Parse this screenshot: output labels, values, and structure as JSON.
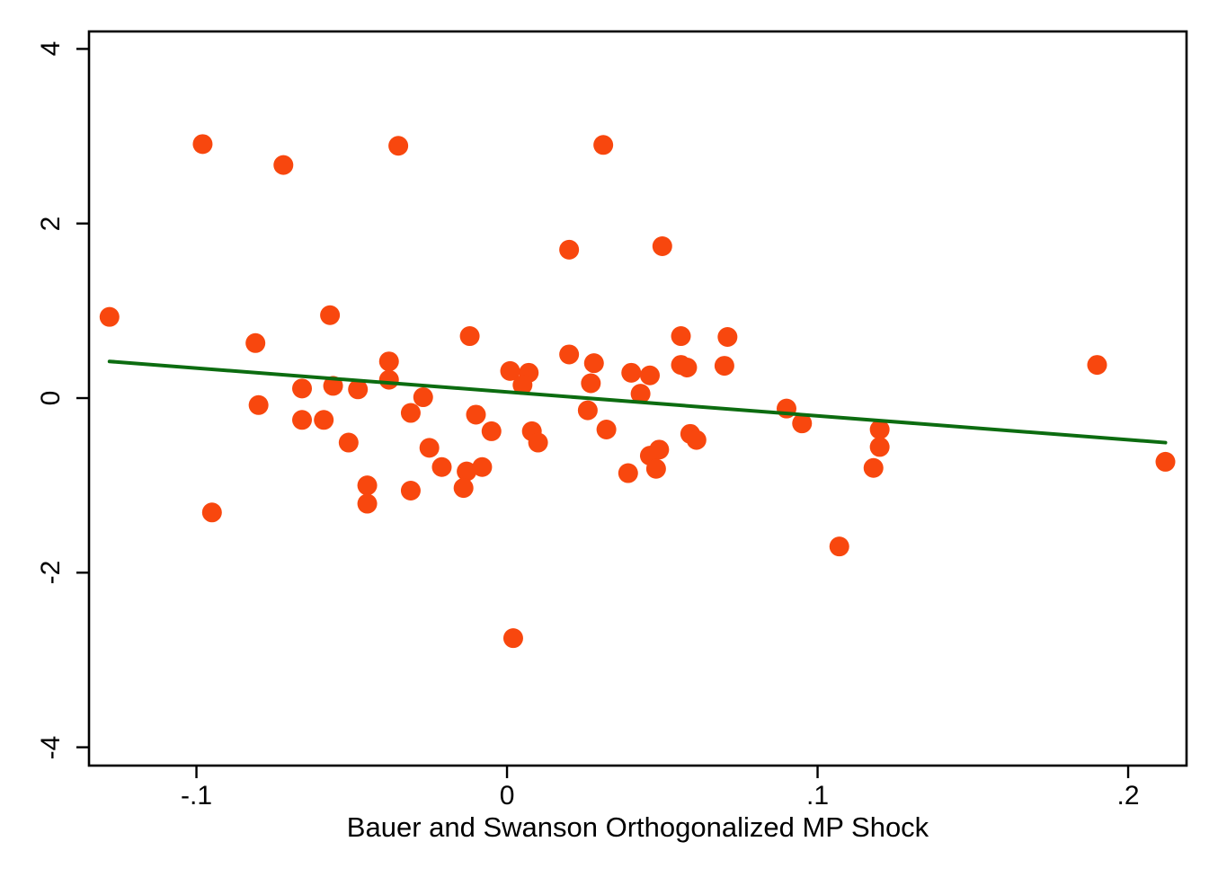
{
  "figure": {
    "background": "#FFFFFF"
  },
  "chart_data": {
    "type": "scatter",
    "title": "",
    "xlabel": "Bauer and Swanson Orthogonalized MP Shock",
    "ylabel": "",
    "grid": false,
    "legend": null,
    "frame_color": "#000000",
    "tick_color": "#000000",
    "xlim": [
      -0.1346,
      0.2188
    ],
    "ylim": [
      -4.21,
      4.2
    ],
    "x_ticks": [
      {
        "value": -0.1,
        "label": "-.1"
      },
      {
        "value": 0.0,
        "label": "0"
      },
      {
        "value": 0.1,
        "label": ".1"
      },
      {
        "value": 0.2,
        "label": ".2"
      }
    ],
    "y_ticks": [
      {
        "value": 4,
        "label": "4"
      },
      {
        "value": 2,
        "label": "2"
      },
      {
        "value": 0,
        "label": "0"
      },
      {
        "value": -2,
        "label": "-2"
      },
      {
        "value": -4,
        "label": "-4"
      }
    ],
    "series": [
      {
        "name": "scatter-points",
        "type": "scatter",
        "color": "#F8470E",
        "marker_diameter_px": 22,
        "points": [
          [
            -0.128,
            0.93
          ],
          [
            -0.098,
            2.91
          ],
          [
            -0.072,
            2.67
          ],
          [
            -0.035,
            2.89
          ],
          [
            0.031,
            2.9
          ],
          [
            0.02,
            1.7
          ],
          [
            0.05,
            1.74
          ],
          [
            -0.057,
            0.95
          ],
          [
            -0.081,
            0.63
          ],
          [
            -0.012,
            0.71
          ],
          [
            0.056,
            0.71
          ],
          [
            0.071,
            0.7
          ],
          [
            -0.038,
            0.42
          ],
          [
            -0.038,
            0.21
          ],
          [
            -0.066,
            0.11
          ],
          [
            -0.056,
            0.14
          ],
          [
            -0.048,
            0.1
          ],
          [
            -0.027,
            0.01
          ],
          [
            0.001,
            0.31
          ],
          [
            0.007,
            0.29
          ],
          [
            0.005,
            0.15
          ],
          [
            0.02,
            0.5
          ],
          [
            0.028,
            0.4
          ],
          [
            0.027,
            0.17
          ],
          [
            0.04,
            0.29
          ],
          [
            0.046,
            0.26
          ],
          [
            0.043,
            0.05
          ],
          [
            0.056,
            0.38
          ],
          [
            0.058,
            0.35
          ],
          [
            0.07,
            0.37
          ],
          [
            0.19,
            0.38
          ],
          [
            -0.08,
            -0.08
          ],
          [
            -0.066,
            -0.25
          ],
          [
            -0.059,
            -0.25
          ],
          [
            -0.051,
            -0.51
          ],
          [
            -0.031,
            -0.17
          ],
          [
            -0.025,
            -0.57
          ],
          [
            -0.021,
            -0.79
          ],
          [
            -0.013,
            -0.84
          ],
          [
            -0.008,
            -0.79
          ],
          [
            -0.014,
            -1.03
          ],
          [
            -0.01,
            -0.19
          ],
          [
            -0.005,
            -0.38
          ],
          [
            -0.045,
            -1.0
          ],
          [
            -0.045,
            -1.21
          ],
          [
            -0.031,
            -1.06
          ],
          [
            0.008,
            -0.38
          ],
          [
            0.01,
            -0.51
          ],
          [
            0.026,
            -0.14
          ],
          [
            0.032,
            -0.36
          ],
          [
            0.039,
            -0.86
          ],
          [
            0.046,
            -0.66
          ],
          [
            0.049,
            -0.59
          ],
          [
            0.048,
            -0.81
          ],
          [
            0.059,
            -0.41
          ],
          [
            0.061,
            -0.48
          ],
          [
            0.09,
            -0.12
          ],
          [
            0.095,
            -0.29
          ],
          [
            0.12,
            -0.36
          ],
          [
            0.12,
            -0.56
          ],
          [
            0.118,
            -0.8
          ],
          [
            0.107,
            -1.7
          ],
          [
            -0.095,
            -1.31
          ],
          [
            0.002,
            -2.75
          ],
          [
            0.212,
            -0.73
          ]
        ]
      },
      {
        "name": "fit-line",
        "type": "line",
        "color": "#0C6C10",
        "stroke_width_px": 4,
        "points": [
          [
            -0.128,
            0.42
          ],
          [
            0.212,
            -0.51
          ]
        ]
      }
    ]
  }
}
